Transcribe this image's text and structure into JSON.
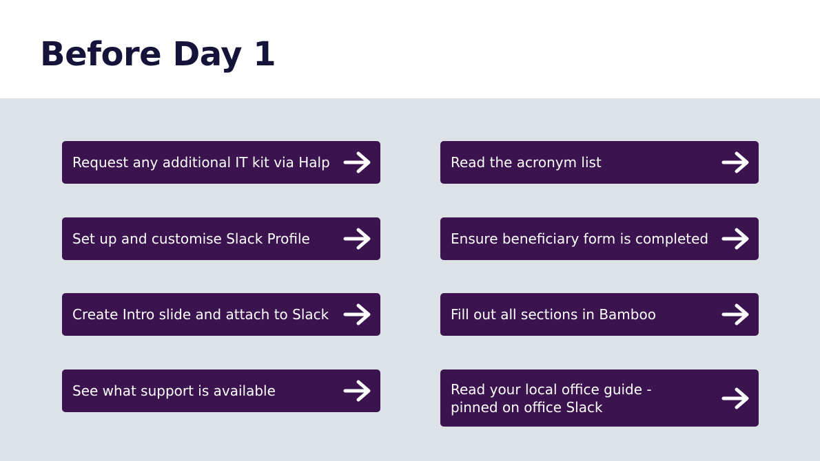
{
  "page": {
    "title": "Before Day 1"
  },
  "colors": {
    "title_text": "#16133a",
    "content_background": "#dde2e6",
    "button_background": "#3b144f",
    "button_text": "#ffffff"
  },
  "tasks": {
    "left": [
      {
        "label": "Request any additional IT kit via Halp",
        "icon": "arrow-right-icon"
      },
      {
        "label": "Set up and customise Slack Profile",
        "icon": "arrow-right-icon"
      },
      {
        "label": "Create Intro slide and attach to Slack",
        "icon": "arrow-right-icon"
      },
      {
        "label": "See what support is available",
        "icon": "arrow-right-icon"
      }
    ],
    "right": [
      {
        "label": "Read the acronym list",
        "icon": "arrow-right-icon"
      },
      {
        "label": "Ensure beneficiary form is completed",
        "icon": "arrow-right-icon"
      },
      {
        "label": "Fill out all sections in Bamboo",
        "icon": "arrow-right-icon"
      },
      {
        "label": "Read your local office guide -\npinned on office Slack",
        "icon": "arrow-right-icon"
      }
    ]
  }
}
